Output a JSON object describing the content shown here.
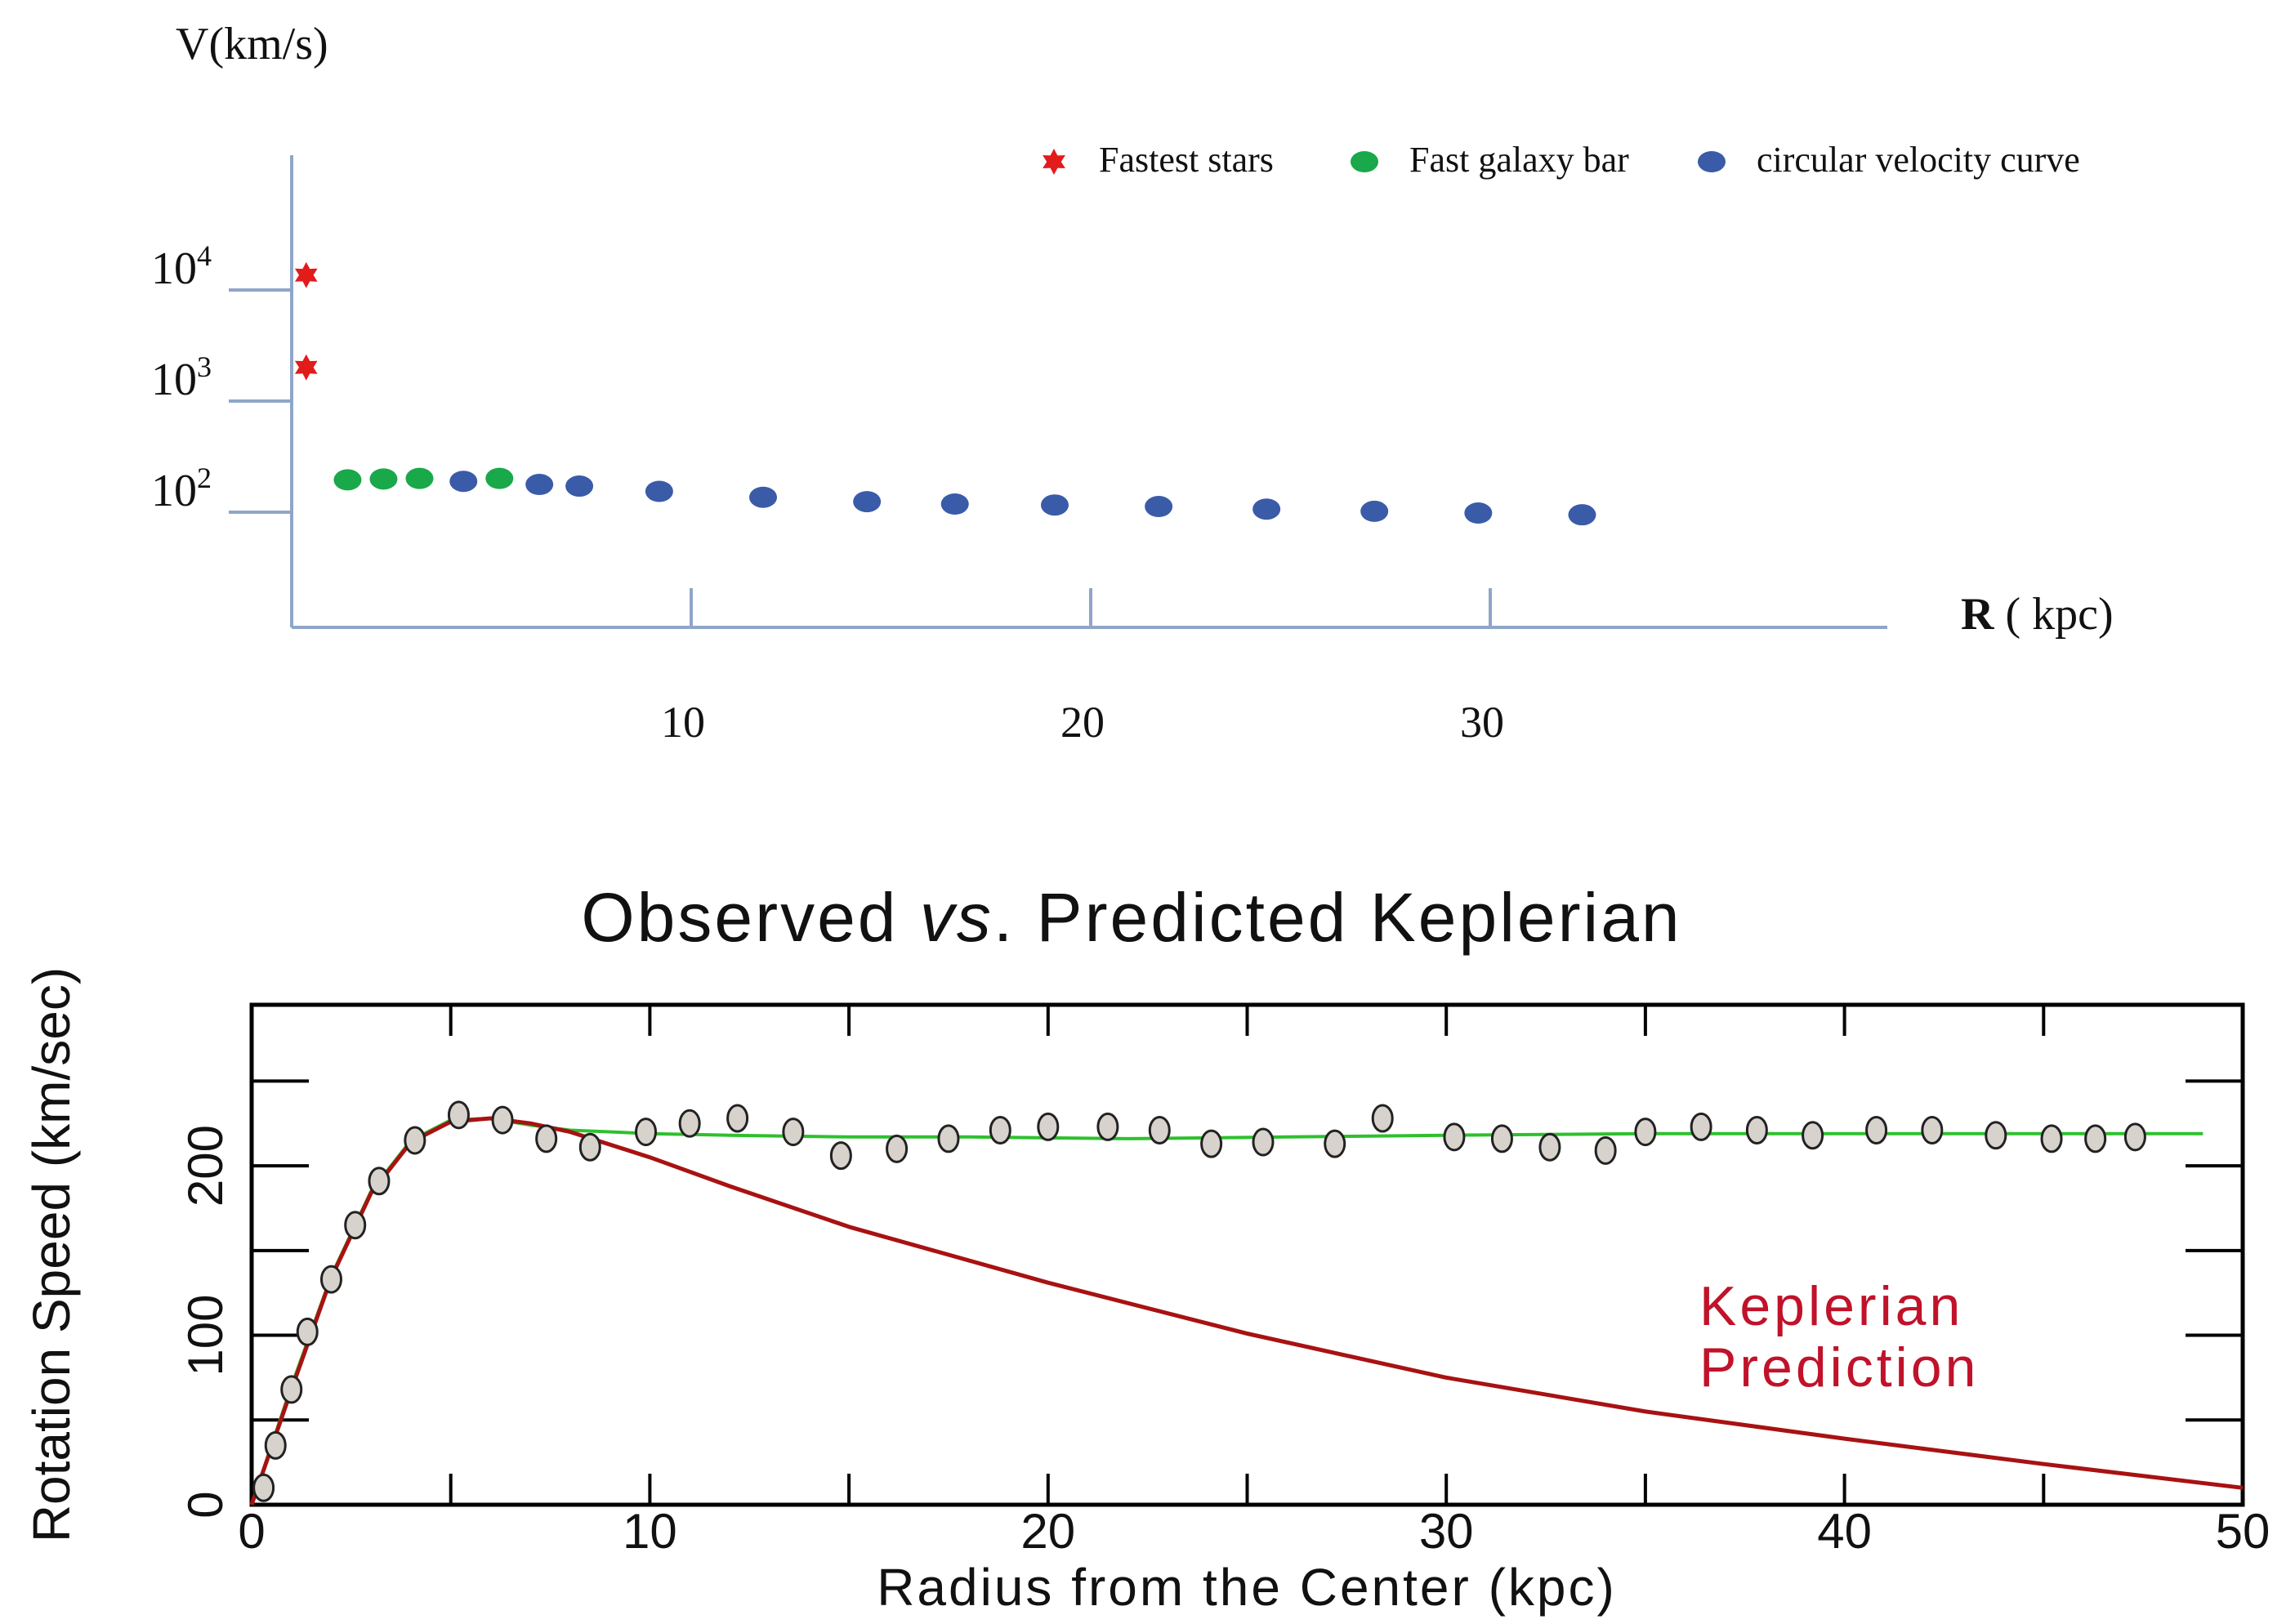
{
  "chart_data": [
    {
      "type": "scatter",
      "ylabel": "V(km/s)",
      "xlabel_bold": "R",
      "xlabel_rest": " ( kpc)",
      "x_ticks": [
        "10",
        "20",
        "30"
      ],
      "x_tick_values": [
        10,
        20,
        30
      ],
      "y_scale": "log",
      "y_ticks": [
        {
          "value": 100,
          "base": "10",
          "exp": "2"
        },
        {
          "value": 1000,
          "base": "10",
          "exp": "3"
        },
        {
          "value": 10000,
          "base": "10",
          "exp": "4"
        }
      ],
      "xlim": [
        0,
        40
      ],
      "legend_position": "top-right",
      "grid": false,
      "series": [
        {
          "name": "Fastest stars",
          "color": "#e21b1b",
          "marker": "star",
          "points": [
            [
              0.2,
              11500
            ],
            [
              0.2,
              1700
            ]
          ]
        },
        {
          "name": "Fast galaxy bar",
          "color": "#19a84a",
          "marker": "circle",
          "points": [
            [
              1.4,
              165
            ],
            [
              2.3,
              168
            ],
            [
              3.2,
              170
            ],
            [
              5.2,
              170
            ]
          ]
        },
        {
          "name": "circular velocity curve",
          "color": "#3a5ba8",
          "marker": "circle",
          "points": [
            [
              4.3,
              160
            ],
            [
              6.2,
              150
            ],
            [
              7.2,
              145
            ],
            [
              9.2,
              130
            ],
            [
              11.8,
              115
            ],
            [
              14.4,
              105
            ],
            [
              16.6,
              100
            ],
            [
              19.1,
              98
            ],
            [
              21.7,
              95
            ],
            [
              24.4,
              90
            ],
            [
              27.1,
              86
            ],
            [
              29.7,
              83
            ],
            [
              32.3,
              80
            ]
          ]
        }
      ]
    },
    {
      "type": "line",
      "title_parts": [
        "Observed ",
        "vs",
        ". Predicted Keplerian"
      ],
      "xlabel": "Radius from the Center (kpc)",
      "ylabel": "Rotation Speed (km/sec)",
      "xlim": [
        0,
        50
      ],
      "ylim": [
        0,
        295
      ],
      "x_ticks": [
        0,
        10,
        20,
        30,
        40,
        50
      ],
      "y_ticks": [
        0,
        100,
        200
      ],
      "grid": false,
      "annotation": [
        "Keplerian",
        "Prediction"
      ],
      "colors": {
        "flat": "#2ec02e",
        "keplerian": "#a81212",
        "annotation": "#c0122a",
        "marker_fill": "#d8d2cc"
      },
      "series": [
        {
          "role": "observed",
          "points": [
            [
              0.3,
              10
            ],
            [
              0.6,
              35
            ],
            [
              1.0,
              68
            ],
            [
              1.4,
              102
            ],
            [
              2.0,
              133
            ],
            [
              2.6,
              165
            ],
            [
              3.2,
              191
            ],
            [
              4.1,
              215
            ],
            [
              5.2,
              230
            ],
            [
              6.3,
              227
            ],
            [
              7.4,
              216
            ],
            [
              8.5,
              211
            ],
            [
              9.9,
              220
            ],
            [
              11.0,
              225
            ],
            [
              12.2,
              228
            ],
            [
              13.6,
              220
            ],
            [
              14.8,
              206
            ],
            [
              16.2,
              210
            ],
            [
              17.5,
              216
            ],
            [
              18.8,
              221
            ],
            [
              20.0,
              223
            ],
            [
              21.5,
              223
            ],
            [
              22.8,
              221
            ],
            [
              24.1,
              213
            ],
            [
              25.4,
              214
            ],
            [
              27.2,
              213
            ],
            [
              28.4,
              228
            ],
            [
              30.2,
              217
            ],
            [
              31.4,
              216
            ],
            [
              32.6,
              211
            ],
            [
              34.0,
              209
            ],
            [
              35.0,
              220
            ],
            [
              36.4,
              223
            ],
            [
              37.8,
              221
            ],
            [
              39.2,
              218
            ],
            [
              40.8,
              221
            ],
            [
              42.2,
              221
            ],
            [
              43.8,
              218
            ],
            [
              45.2,
              216
            ],
            [
              46.3,
              216
            ],
            [
              47.3,
              217
            ]
          ]
        },
        {
          "role": "flat",
          "points": [
            [
              0,
              0
            ],
            [
              1,
              70
            ],
            [
              2,
              135
            ],
            [
              3,
              185
            ],
            [
              4,
              215
            ],
            [
              5,
              227
            ],
            [
              6,
              228
            ],
            [
              7,
              224
            ],
            [
              8,
              221
            ],
            [
              10,
              219
            ],
            [
              12,
              218
            ],
            [
              15,
              217
            ],
            [
              18,
              217
            ],
            [
              22,
              216
            ],
            [
              26,
              217
            ],
            [
              30,
              218
            ],
            [
              35,
              219
            ],
            [
              40,
              219
            ],
            [
              45,
              219
            ],
            [
              49,
              219
            ]
          ]
        },
        {
          "role": "keplerian",
          "points": [
            [
              0,
              0
            ],
            [
              1,
              68
            ],
            [
              2,
              134
            ],
            [
              3,
              184
            ],
            [
              4,
              214
            ],
            [
              5,
              226
            ],
            [
              6,
              228
            ],
            [
              7,
              225
            ],
            [
              8,
              220
            ],
            [
              10,
              205
            ],
            [
              12,
              188
            ],
            [
              15,
              164
            ],
            [
              20,
              131
            ],
            [
              25,
              101
            ],
            [
              30,
              75
            ],
            [
              35,
              55
            ],
            [
              40,
              39
            ],
            [
              45,
              24
            ],
            [
              50,
              10
            ]
          ]
        }
      ]
    }
  ]
}
